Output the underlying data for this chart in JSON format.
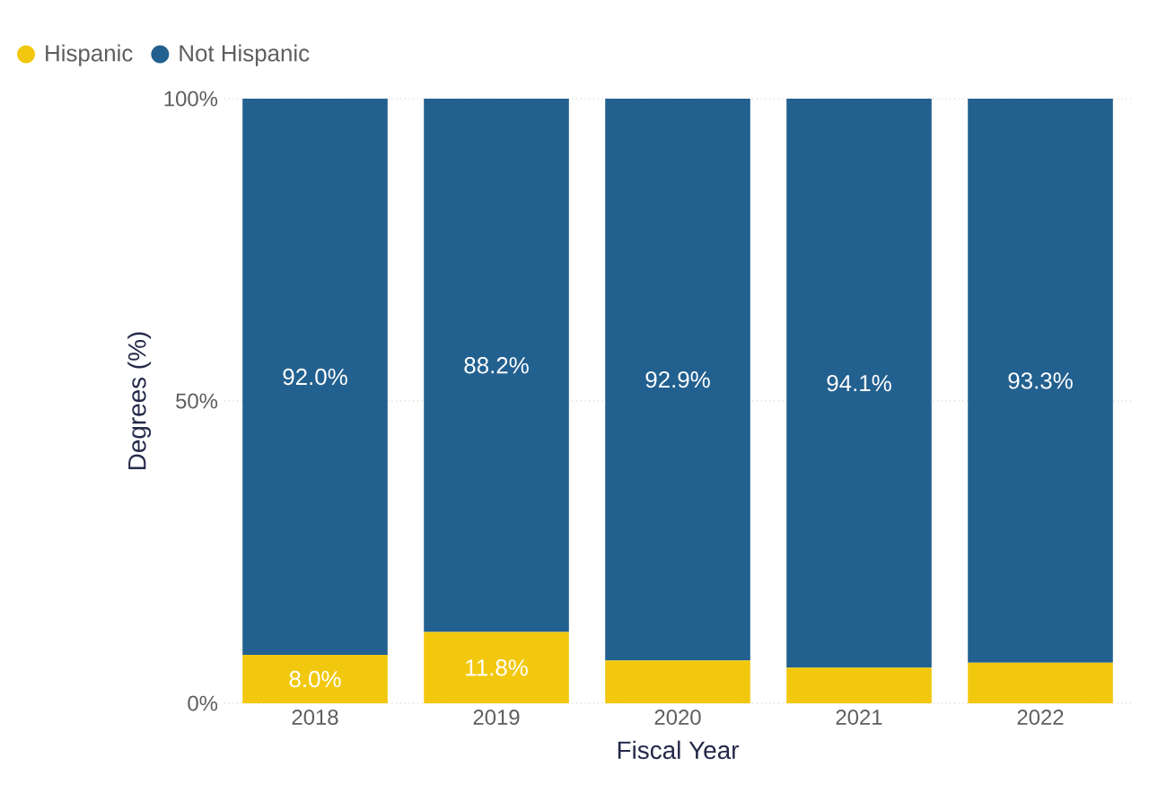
{
  "chart_data": {
    "type": "bar",
    "stacked": true,
    "xlabel": "Fiscal Year",
    "ylabel": "Degrees (%)",
    "categories": [
      "2018",
      "2019",
      "2020",
      "2021",
      "2022"
    ],
    "series": [
      {
        "name": "Hispanic",
        "color": "#f2c80f",
        "values": [
          8.0,
          11.8,
          7.1,
          5.9,
          6.7
        ],
        "value_labels": [
          "8.0%",
          "11.8%",
          null,
          null,
          null
        ]
      },
      {
        "name": "Not Hispanic",
        "color": "#22608f",
        "values": [
          92.0,
          88.2,
          92.9,
          94.1,
          93.3
        ],
        "value_labels": [
          "92.0%",
          "88.2%",
          "92.9%",
          "94.1%",
          "93.3%"
        ]
      }
    ],
    "ylim": [
      0,
      100
    ],
    "yticks": [
      {
        "value": 0,
        "label": "0%"
      },
      {
        "value": 50,
        "label": "50%"
      },
      {
        "value": 100,
        "label": "100%"
      }
    ],
    "grid": "y",
    "legend": "top left",
    "marker": "circle"
  }
}
